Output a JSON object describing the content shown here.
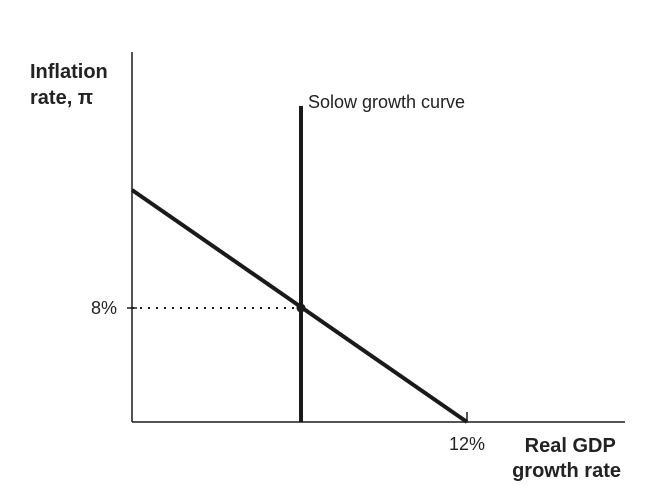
{
  "y_axis_label": [
    "Inflation",
    "rate, π"
  ],
  "x_axis_label": [
    "Real GDP",
    "growth rate"
  ],
  "solow_curve_label": "Solow growth curve",
  "y_tick_label": "8%",
  "x_tick_label": "12%",
  "colors": {
    "line": "#1a1a1a",
    "text": "#222222",
    "background": "#ffffff"
  }
}
